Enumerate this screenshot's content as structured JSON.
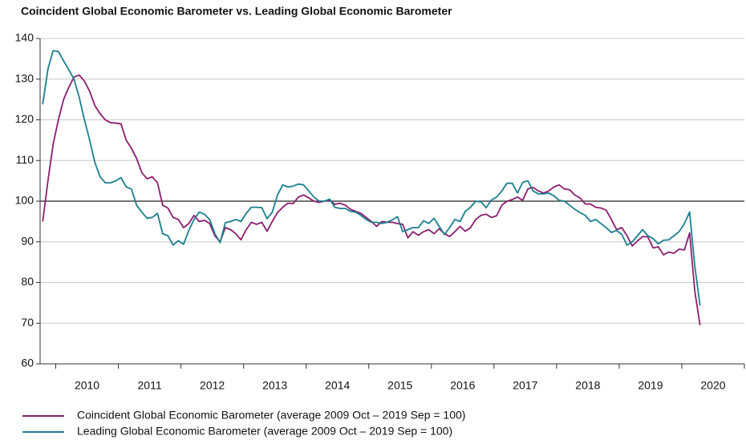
{
  "chart_data": {
    "type": "line",
    "title": "Coincident Global Economic Barometer vs. Leading Global Economic Barometer",
    "x": [
      "2009-10",
      "2009-11",
      "2009-12",
      "2010-01",
      "2010-02",
      "2010-03",
      "2010-04",
      "2010-05",
      "2010-06",
      "2010-07",
      "2010-08",
      "2010-09",
      "2010-10",
      "2010-11",
      "2010-12",
      "2011-01",
      "2011-02",
      "2011-03",
      "2011-04",
      "2011-05",
      "2011-06",
      "2011-07",
      "2011-08",
      "2011-09",
      "2011-10",
      "2011-11",
      "2011-12",
      "2012-01",
      "2012-02",
      "2012-03",
      "2012-04",
      "2012-05",
      "2012-06",
      "2012-07",
      "2012-08",
      "2012-09",
      "2012-10",
      "2012-11",
      "2012-12",
      "2013-01",
      "2013-02",
      "2013-03",
      "2013-04",
      "2013-05",
      "2013-06",
      "2013-07",
      "2013-08",
      "2013-09",
      "2013-10",
      "2013-11",
      "2013-12",
      "2014-01",
      "2014-02",
      "2014-03",
      "2014-04",
      "2014-05",
      "2014-06",
      "2014-07",
      "2014-08",
      "2014-09",
      "2014-10",
      "2014-11",
      "2014-12",
      "2015-01",
      "2015-02",
      "2015-03",
      "2015-04",
      "2015-05",
      "2015-06",
      "2015-07",
      "2015-08",
      "2015-09",
      "2015-10",
      "2015-11",
      "2015-12",
      "2016-01",
      "2016-02",
      "2016-03",
      "2016-04",
      "2016-05",
      "2016-06",
      "2016-07",
      "2016-08",
      "2016-09",
      "2016-10",
      "2016-11",
      "2016-12",
      "2017-01",
      "2017-02",
      "2017-03",
      "2017-04",
      "2017-05",
      "2017-06",
      "2017-07",
      "2017-08",
      "2017-09",
      "2017-10",
      "2017-11",
      "2017-12",
      "2018-01",
      "2018-02",
      "2018-03",
      "2018-04",
      "2018-05",
      "2018-06",
      "2018-07",
      "2018-08",
      "2018-09",
      "2018-10",
      "2018-11",
      "2018-12",
      "2019-01",
      "2019-02",
      "2019-03",
      "2019-04",
      "2019-05",
      "2019-06",
      "2019-07",
      "2019-08",
      "2019-09",
      "2019-10",
      "2019-11",
      "2019-12",
      "2020-01",
      "2020-02",
      "2020-03",
      "2020-04"
    ],
    "series": [
      {
        "name": "Coincident Global Economic Barometer (average 2009 Oct – 2019 Sep = 100)",
        "color": "#8c1d6e",
        "values": [
          95,
          105,
          114,
          120,
          125,
          128,
          130.5,
          131,
          129.5,
          127,
          123.5,
          121.5,
          120,
          119.3,
          119.2,
          119,
          115,
          113,
          110.5,
          107,
          105.5,
          106,
          104.5,
          99,
          98.3,
          96,
          95.5,
          93.5,
          94.5,
          96.5,
          95,
          95.3,
          94.5,
          91.5,
          90,
          93.5,
          93,
          92,
          90.5,
          93,
          94.8,
          94.3,
          94.8,
          92.6,
          95,
          97.2,
          98.5,
          99.5,
          99.4,
          101,
          101.5,
          100.8,
          100,
          99.7,
          100,
          100.3,
          99.2,
          99.5,
          99,
          98,
          97.5,
          97,
          96,
          95,
          93.8,
          95,
          94.8,
          94.8,
          94.5,
          94.3,
          91,
          92.5,
          91.6,
          92.5,
          93,
          92,
          93.2,
          92,
          91.3,
          92.5,
          93.8,
          92.6,
          93.5,
          95.5,
          96.5,
          96.8,
          96,
          96.4,
          99,
          100,
          100.4,
          101,
          100.2,
          103,
          103.4,
          102.5,
          102,
          102.5,
          103.5,
          104,
          103,
          102.8,
          101.5,
          100.8,
          99.3,
          99.3,
          98.5,
          98.3,
          97.8,
          95.5,
          93,
          93.5,
          91.5,
          89,
          90.2,
          91.3,
          91.2,
          88.5,
          88.8,
          86.8,
          87.5,
          87.2,
          88.2,
          88,
          92.2,
          77.8,
          69.5
        ]
      },
      {
        "name": "Leading Global Economic Barometer (average 2009 Oct – 2019 Sep = 100)",
        "color": "#1b7f8f",
        "values": [
          123.8,
          132.5,
          137,
          136.8,
          134.5,
          132.3,
          130,
          125.5,
          120,
          115,
          109.5,
          106,
          104.5,
          104.5,
          105,
          105.8,
          103.5,
          103,
          99,
          97.3,
          95.8,
          96,
          97,
          92,
          91.5,
          89.2,
          90.3,
          89.4,
          92.8,
          95.5,
          97.3,
          96.8,
          95.5,
          92,
          89.8,
          94.7,
          95,
          95.5,
          95,
          97,
          98.5,
          98.5,
          98.4,
          95.7,
          97.3,
          101.5,
          104,
          103.5,
          103.7,
          104.2,
          104,
          102.5,
          101,
          100,
          100,
          100.5,
          98.5,
          98.2,
          98.2,
          97.5,
          97.3,
          96.5,
          95.5,
          94.8,
          94.8,
          94.5,
          94.8,
          95.4,
          96.2,
          92.5,
          93,
          93.5,
          93.5,
          95.2,
          94.5,
          95.8,
          93.8,
          91.8,
          93.5,
          95.5,
          95,
          97.5,
          98.5,
          100,
          99.8,
          98.4,
          100.3,
          101,
          102.5,
          104.4,
          104.4,
          102,
          104.6,
          105,
          102.5,
          101.8,
          101.8,
          102,
          101.3,
          100.2,
          100,
          99,
          98,
          97.2,
          96.5,
          95,
          95.5,
          94.5,
          93.5,
          92.3,
          92.8,
          91.8,
          89.2,
          90,
          91.5,
          93,
          91.5,
          90.8,
          89.5,
          90.4,
          90.5,
          91.5,
          92.5,
          94.5,
          97.3,
          84,
          74.3
        ]
      }
    ],
    "xlim": [
      "2009-10",
      "2021-01"
    ],
    "xticks": [
      {
        "value": "2010-01",
        "label": "2010"
      },
      {
        "value": "2011-01",
        "label": "2011"
      },
      {
        "value": "2012-01",
        "label": "2012"
      },
      {
        "value": "2013-01",
        "label": "2013"
      },
      {
        "value": "2014-01",
        "label": "2014"
      },
      {
        "value": "2015-01",
        "label": "2015"
      },
      {
        "value": "2016-01",
        "label": "2016"
      },
      {
        "value": "2017-01",
        "label": "2017"
      },
      {
        "value": "2018-01",
        "label": "2018"
      },
      {
        "value": "2019-01",
        "label": "2019"
      },
      {
        "value": "2020-01",
        "label": "2020"
      }
    ],
    "ylim": [
      60,
      140
    ],
    "yticks": [
      60,
      70,
      80,
      90,
      100,
      110,
      120,
      130,
      140
    ],
    "reference_line": 100,
    "grid": true,
    "legend": "bottom-left"
  }
}
